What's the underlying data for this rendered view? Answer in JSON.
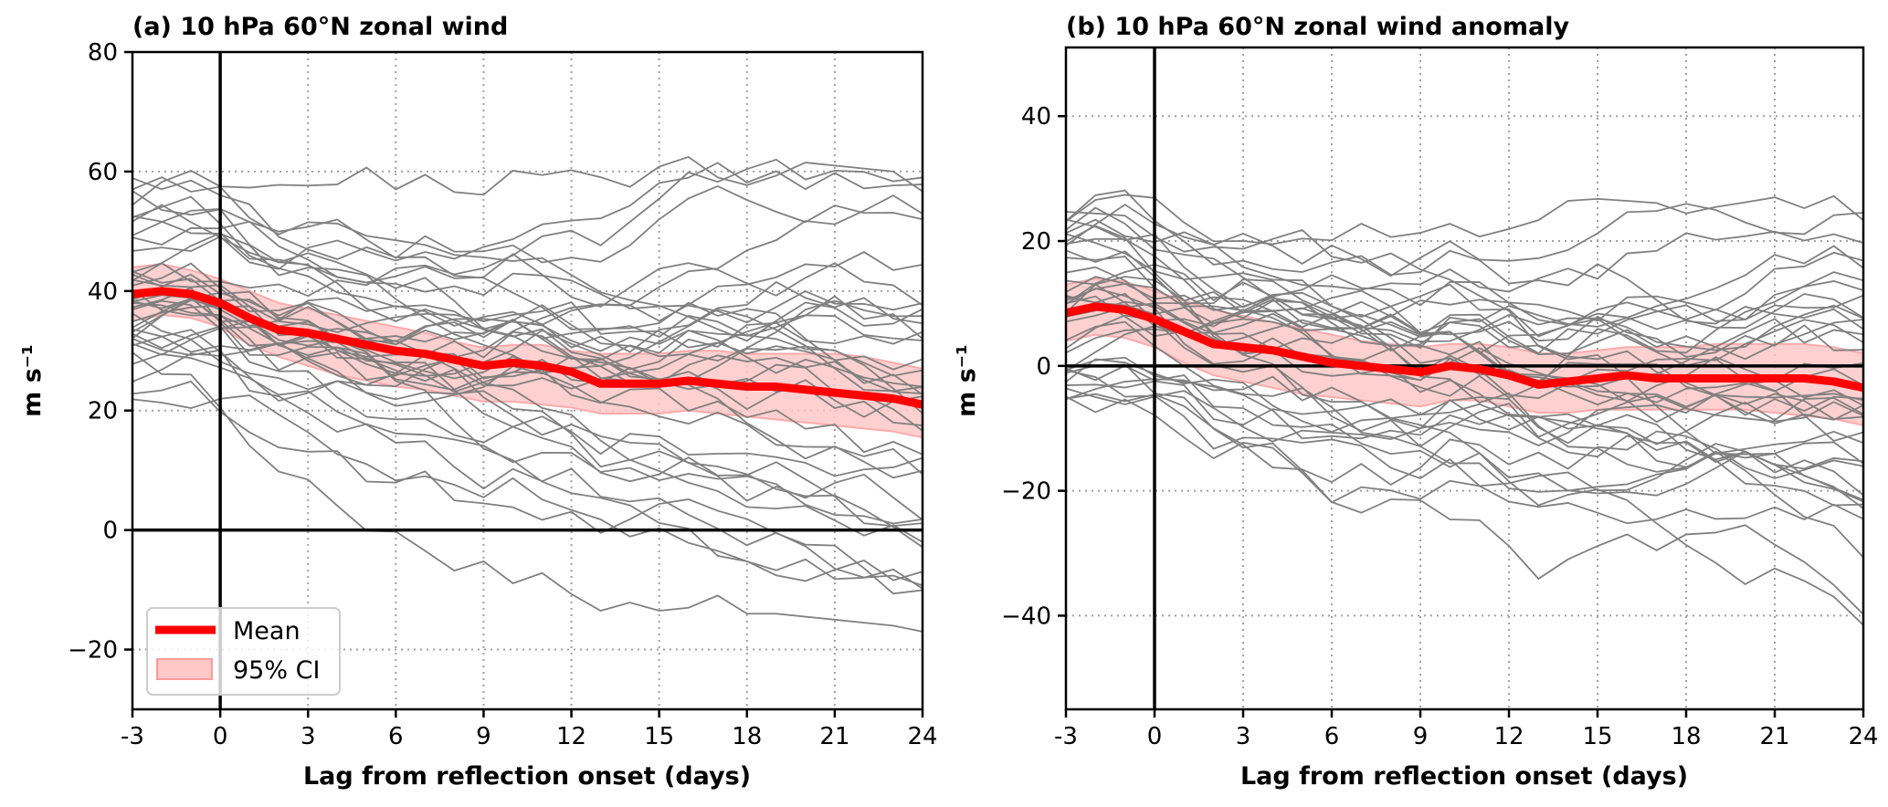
{
  "chart_data": [
    {
      "type": "line",
      "panel": "a",
      "title": "(a) 10 hPa 60°N zonal wind",
      "xlabel": "Lag from reflection onset (days)",
      "ylabel": "m s⁻¹",
      "xlim": [
        -3,
        24
      ],
      "ylim": [
        -30,
        80
      ],
      "xticks": [
        -3,
        0,
        3,
        6,
        9,
        12,
        15,
        18,
        21,
        24
      ],
      "xtick_labels": [
        "-3",
        "0",
        "3",
        "6",
        "9",
        "12",
        "15",
        "18",
        "21",
        "24"
      ],
      "yticks": [
        -20,
        0,
        20,
        40,
        60,
        80
      ],
      "ytick_labels": [
        "−20",
        "0",
        "20",
        "40",
        "60",
        "80"
      ],
      "grid": true,
      "reference_lines": {
        "x": 0,
        "y": 0
      },
      "legend": {
        "position": "lower-left",
        "entries": [
          "Mean",
          "95% CI"
        ]
      },
      "x": [
        -3,
        -2,
        -1,
        0,
        1,
        2,
        3,
        4,
        5,
        6,
        7,
        8,
        9,
        10,
        11,
        12,
        13,
        14,
        15,
        16,
        17,
        18,
        19,
        20,
        21,
        22,
        23,
        24
      ],
      "series": [
        {
          "name": "Mean",
          "color": "#ff0000",
          "values": [
            39.5,
            40,
            39.5,
            38,
            35.5,
            33.5,
            33,
            32,
            31,
            30,
            29.5,
            28.5,
            27.5,
            28,
            27.5,
            26.5,
            24.5,
            24.5,
            24.5,
            25,
            24.5,
            24,
            24,
            23.5,
            23,
            22.5,
            22,
            21
          ]
        },
        {
          "name": "95% CI",
          "type": "band",
          "color": "#ffc8c8",
          "lower": [
            35,
            36,
            35.5,
            34,
            31,
            29,
            27.5,
            26,
            25,
            24,
            23.5,
            22.5,
            21.5,
            21.5,
            21,
            20.5,
            19.5,
            19.5,
            19.5,
            20,
            19.5,
            19,
            18.5,
            18,
            17.5,
            17,
            16.5,
            15.5
          ],
          "upper": [
            44,
            44.5,
            43.5,
            42,
            40,
            38,
            37,
            36,
            35,
            34,
            33,
            31.5,
            30.5,
            31,
            31,
            30,
            29.5,
            29.5,
            29.5,
            30,
            30,
            29.5,
            29.5,
            29.5,
            29.5,
            29,
            28,
            27
          ]
        }
      ],
      "ensemble_member_color": "#808080"
    },
    {
      "type": "line",
      "panel": "b",
      "title": "(b) 10 hPa 60°N zonal wind anomaly",
      "xlabel": "Lag from reflection onset (days)",
      "ylabel": "m s⁻¹",
      "xlim": [
        -3,
        24
      ],
      "ylim": [
        -55,
        51
      ],
      "xticks": [
        -3,
        0,
        3,
        6,
        9,
        12,
        15,
        18,
        21,
        24
      ],
      "xtick_labels": [
        "-3",
        "0",
        "3",
        "6",
        "9",
        "12",
        "15",
        "18",
        "21",
        "24"
      ],
      "yticks": [
        -40,
        -20,
        0,
        20,
        40
      ],
      "ytick_labels": [
        "−40",
        "−20",
        "0",
        "20",
        "40"
      ],
      "grid": true,
      "reference_lines": {
        "x": 0,
        "y": 0
      },
      "x": [
        -3,
        -2,
        -1,
        0,
        1,
        2,
        3,
        4,
        5,
        6,
        7,
        8,
        9,
        10,
        11,
        12,
        13,
        14,
        15,
        16,
        17,
        18,
        19,
        20,
        21,
        22,
        23,
        24
      ],
      "series": [
        {
          "name": "Mean",
          "color": "#ff0000",
          "values": [
            8.5,
            9.5,
            9,
            7.5,
            5.5,
            3.5,
            3,
            2.5,
            1.5,
            0.5,
            0,
            -0.5,
            -1,
            0,
            -0.5,
            -1.5,
            -3,
            -2.5,
            -2,
            -1.5,
            -2,
            -2,
            -2,
            -2,
            -2,
            -2,
            -2.5,
            -3.5
          ]
        },
        {
          "name": "95% CI",
          "type": "band",
          "color": "#ffc8c8",
          "lower": [
            4,
            5,
            4.5,
            3,
            0.5,
            -1.5,
            -2.5,
            -3.5,
            -4.5,
            -5,
            -5.5,
            -6,
            -6.5,
            -5.5,
            -5.5,
            -6.5,
            -7.5,
            -7.5,
            -7,
            -7,
            -7,
            -7,
            -7,
            -7,
            -7.5,
            -8,
            -8.5,
            -9.5
          ],
          "upper": [
            13,
            14,
            13.5,
            12,
            10.5,
            9,
            8,
            7,
            6,
            5,
            4,
            3.5,
            3,
            3.5,
            3.5,
            3,
            2,
            2,
            2.5,
            3,
            3,
            3,
            3.5,
            3.5,
            3.5,
            3.5,
            3,
            2
          ]
        }
      ],
      "ensemble_member_color": "#808080"
    }
  ],
  "legend": {
    "mean_label": "Mean",
    "ci_label": "95% CI"
  }
}
